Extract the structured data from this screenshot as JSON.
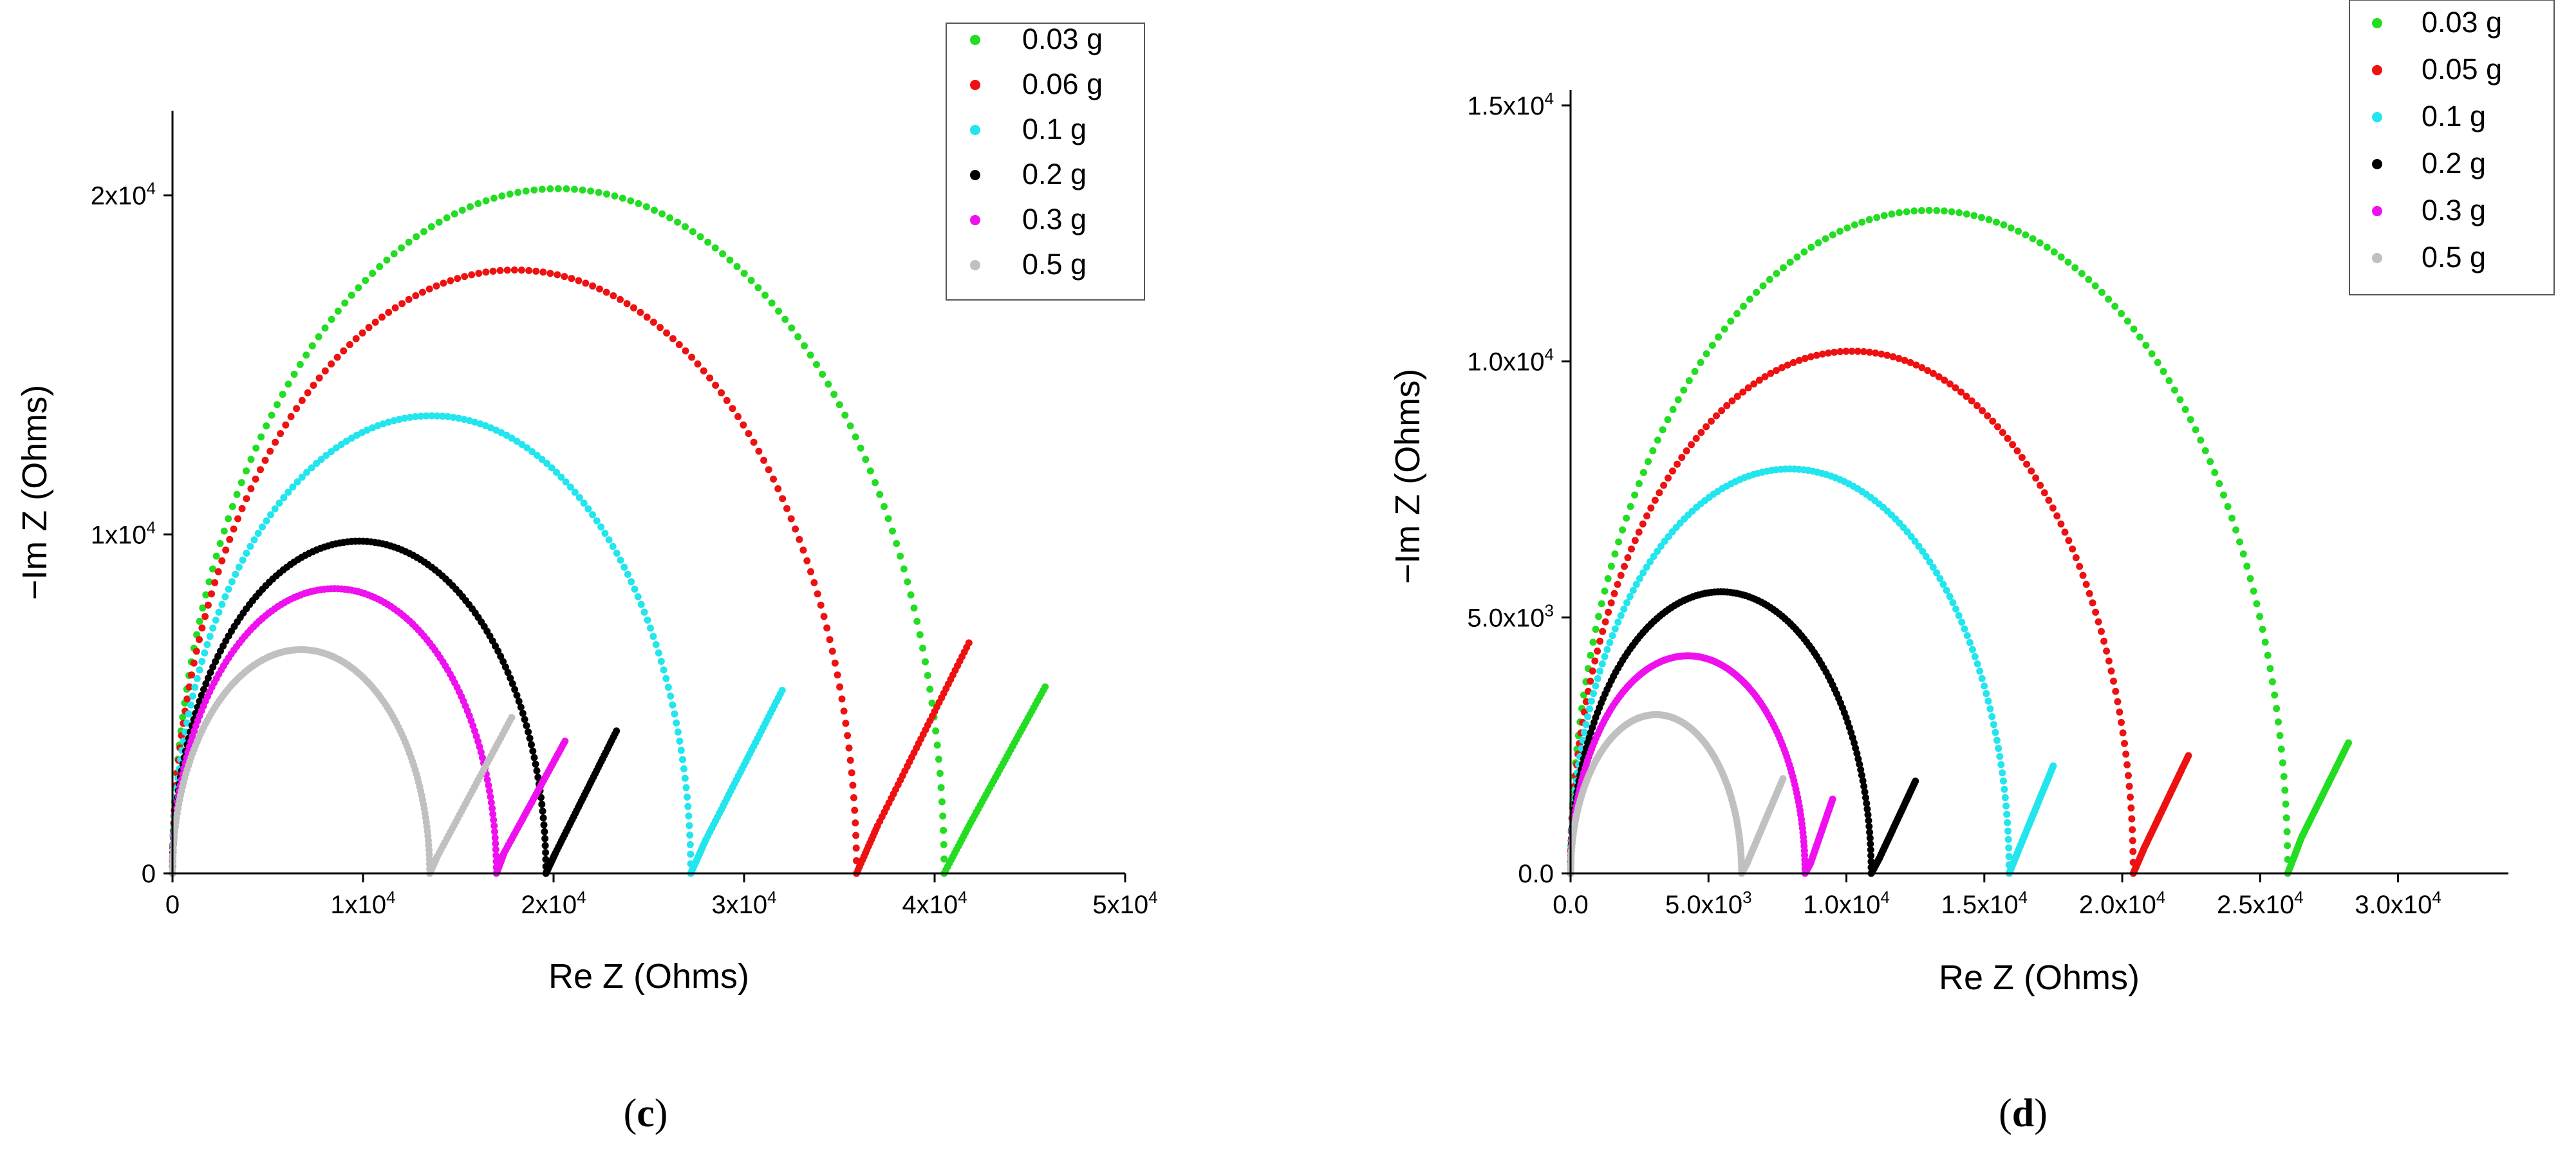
{
  "chart_data": [
    {
      "type": "scatter",
      "panel_label": {
        "open": "(",
        "letter": "c",
        "close": ")"
      },
      "xlabel": "Re Z (Ohms)",
      "ylabel": "−Im Z (Ohms)",
      "xlim": [
        0,
        50000
      ],
      "ylim": [
        0,
        22500
      ],
      "x_ticks": [
        {
          "value": 0,
          "label": "0"
        },
        {
          "value": 10000,
          "label": "1x10",
          "sup": "4"
        },
        {
          "value": 20000,
          "label": "2x10",
          "sup": "4"
        },
        {
          "value": 30000,
          "label": "3x10",
          "sup": "4"
        },
        {
          "value": 40000,
          "label": "4x10",
          "sup": "4"
        },
        {
          "value": 50000,
          "label": "5x10",
          "sup": "4"
        }
      ],
      "y_ticks": [
        {
          "value": 0,
          "label": "0"
        },
        {
          "value": 10000,
          "label": "1x10",
          "sup": "4"
        },
        {
          "value": 20000,
          "label": "2x10",
          "sup": "4"
        }
      ],
      "legend_position": "top-right",
      "series": [
        {
          "name": "0.03 g",
          "color": "#22dd22",
          "x0": 0,
          "x1": 40500,
          "peak": 20200,
          "mx": 41800,
          "my": 1400,
          "ex": 45800,
          "ey": 5500
        },
        {
          "name": "0.06 g",
          "color": "#ee1111",
          "x0": 0,
          "x1": 35900,
          "peak": 17800,
          "mx": 37000,
          "my": 1400,
          "ex": 41800,
          "ey": 6800
        },
        {
          "name": "0.1 g",
          "color": "#22e5ee",
          "x0": 0,
          "x1": 27200,
          "peak": 13500,
          "mx": 28000,
          "my": 1000,
          "ex": 32000,
          "ey": 5400
        },
        {
          "name": "0.2 g",
          "color": "#000000",
          "x0": 0,
          "x1": 19600,
          "peak": 9800,
          "mx": 20100,
          "my": 600,
          "ex": 23300,
          "ey": 4200
        },
        {
          "name": "0.3 g",
          "color": "#ee11ee",
          "x0": 0,
          "x1": 17000,
          "peak": 8400,
          "mx": 17400,
          "my": 600,
          "ex": 20600,
          "ey": 3900
        },
        {
          "name": "0.5 g",
          "color": "#c0c0c0",
          "x0": 0,
          "x1": 13500,
          "peak": 6600,
          "mx": 13900,
          "my": 500,
          "ex": 17800,
          "ey": 4600
        }
      ]
    },
    {
      "type": "scatter",
      "panel_label": {
        "open": "(",
        "letter": "d",
        "close": ")"
      },
      "xlabel": "Re Z (Ohms)",
      "ylabel": "−Im Z (Ohms)",
      "xlim": [
        0,
        34000
      ],
      "ylim": [
        0,
        15300
      ],
      "x_ticks": [
        {
          "value": 0,
          "label": "0.0"
        },
        {
          "value": 5000,
          "label": "5.0x10",
          "sup": "3"
        },
        {
          "value": 10000,
          "label": "1.0x10",
          "sup": "4"
        },
        {
          "value": 15000,
          "label": "1.5x10",
          "sup": "4"
        },
        {
          "value": 20000,
          "label": "2.0x10",
          "sup": "4"
        },
        {
          "value": 25000,
          "label": "2.5x10",
          "sup": "4"
        },
        {
          "value": 30000,
          "label": "3.0x10",
          "sup": "4"
        }
      ],
      "y_ticks": [
        {
          "value": 0,
          "label": "0.0"
        },
        {
          "value": 5000,
          "label": "5.0x10",
          "sup": "3"
        },
        {
          "value": 10000,
          "label": "1.0x10",
          "sup": "4"
        },
        {
          "value": 15000,
          "label": "1.5x10",
          "sup": "4"
        }
      ],
      "legend_position": "top-right",
      "series": [
        {
          "name": "0.03 g",
          "color": "#22dd22",
          "x0": 0,
          "x1": 26000,
          "peak": 12950,
          "mx": 26500,
          "my": 700,
          "ex": 28200,
          "ey": 2550
        },
        {
          "name": "0.05 g",
          "color": "#ee1111",
          "x0": 0,
          "x1": 20400,
          "peak": 10200,
          "mx": 20800,
          "my": 500,
          "ex": 22400,
          "ey": 2300
        },
        {
          "name": "0.1 g",
          "color": "#22e5ee",
          "x0": 0,
          "x1": 15900,
          "peak": 7900,
          "mx": 16200,
          "my": 400,
          "ex": 17500,
          "ey": 2100
        },
        {
          "name": "0.2 g",
          "color": "#000000",
          "x0": 0,
          "x1": 10900,
          "peak": 5500,
          "mx": 11200,
          "my": 300,
          "ex": 12500,
          "ey": 1800
        },
        {
          "name": "0.3 g",
          "color": "#ee11ee",
          "x0": 0,
          "x1": 8500,
          "peak": 4250,
          "mx": 8700,
          "my": 200,
          "ex": 9500,
          "ey": 1450
        },
        {
          "name": "0.5 g",
          "color": "#c0c0c0",
          "x0": 0,
          "x1": 6200,
          "peak": 3100,
          "mx": 6400,
          "my": 200,
          "ex": 7700,
          "ey": 1850
        }
      ]
    }
  ]
}
